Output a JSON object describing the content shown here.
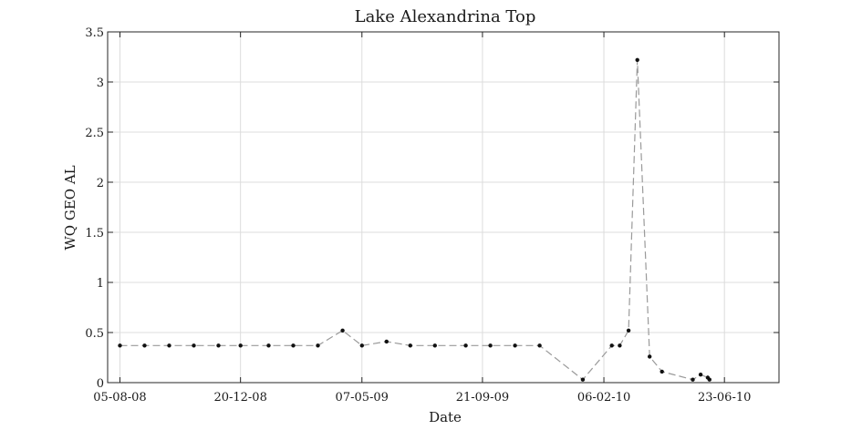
{
  "chart_data": {
    "type": "line",
    "title": "Lake Alexandrina Top",
    "xlabel": "Date",
    "ylabel": "WQ GEO AL",
    "x_ticks": [
      "05-08-08",
      "20-12-08",
      "07-05-09",
      "21-09-09",
      "06-02-10",
      "23-06-10"
    ],
    "x_tick_dates": [
      "2008-08-05",
      "2008-12-20",
      "2009-05-07",
      "2009-09-21",
      "2010-02-06",
      "2010-06-23"
    ],
    "y_ticks": [
      "0",
      "0.5",
      "1",
      "1.5",
      "2",
      "2.5",
      "3",
      "3.5"
    ],
    "xlim": [
      "2008-07-22",
      "2010-08-24"
    ],
    "ylim": [
      0,
      3.5
    ],
    "grid": true,
    "marker_color": "#111111",
    "line_color": "#9a9a9a",
    "series": [
      {
        "x": [
          "2008-08-05",
          "2008-09-02",
          "2008-09-30",
          "2008-10-28",
          "2008-11-25",
          "2008-12-20",
          "2009-01-21",
          "2009-02-18",
          "2009-03-18",
          "2009-04-15",
          "2009-05-07",
          "2009-06-04",
          "2009-07-01",
          "2009-07-29",
          "2009-09-02",
          "2009-09-30",
          "2009-10-28",
          "2009-11-25",
          "2010-01-13",
          "2010-02-15",
          "2010-02-24",
          "2010-03-06",
          "2010-03-16",
          "2010-03-30",
          "2010-04-13",
          "2010-05-18",
          "2010-05-27",
          "2010-06-04",
          "2010-06-06"
        ],
        "y": [
          0.37,
          0.37,
          0.37,
          0.37,
          0.37,
          0.37,
          0.37,
          0.37,
          0.37,
          0.52,
          0.37,
          0.41,
          0.37,
          0.37,
          0.37,
          0.37,
          0.37,
          0.37,
          0.03,
          0.37,
          0.37,
          0.52,
          3.22,
          0.26,
          0.11,
          0.03,
          0.08,
          0.05,
          0.03
        ]
      }
    ]
  }
}
